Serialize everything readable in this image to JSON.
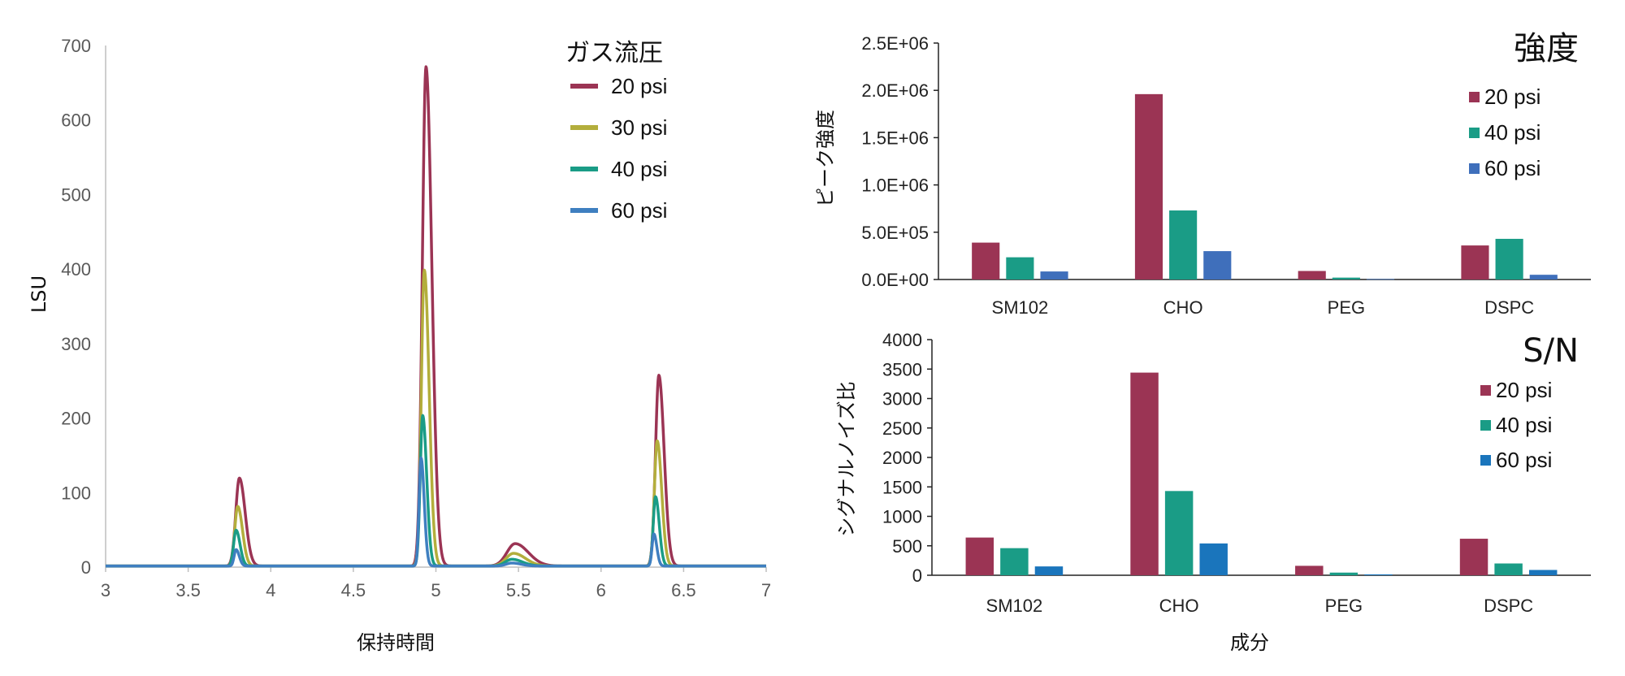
{
  "chart_data": [
    {
      "type": "line",
      "xlabel": "保持時間",
      "ylabel": "LSU",
      "xlim": [
        3,
        7
      ],
      "ylim": [
        0,
        700
      ],
      "x_ticks": [
        "3",
        "3.5",
        "4",
        "4.5",
        "5",
        "5.5",
        "6",
        "6.5",
        "7"
      ],
      "y_ticks": [
        "0",
        "100",
        "200",
        "300",
        "400",
        "500",
        "600",
        "700"
      ],
      "legend_title": "ガス流圧",
      "legend_position": "top-right",
      "grid": false,
      "series": [
        {
          "name": "20 psi",
          "color": "#9B3454",
          "peaks": [
            {
              "x": 3.81,
              "y": 118,
              "sigma": 0.022
            },
            {
              "x": 4.94,
              "y": 670,
              "sigma": 0.022
            },
            {
              "x": 5.48,
              "y": 30,
              "sigma": 0.05
            },
            {
              "x": 6.35,
              "y": 256,
              "sigma": 0.02
            }
          ]
        },
        {
          "name": "30 psi",
          "color": "#B3AE3C",
          "peaks": [
            {
              "x": 3.8,
              "y": 80,
              "sigma": 0.018
            },
            {
              "x": 4.93,
              "y": 397,
              "sigma": 0.018
            },
            {
              "x": 5.47,
              "y": 17,
              "sigma": 0.045
            },
            {
              "x": 6.34,
              "y": 168,
              "sigma": 0.017
            }
          ]
        },
        {
          "name": "40 psi",
          "color": "#1A9C86",
          "peaks": [
            {
              "x": 3.79,
              "y": 48,
              "sigma": 0.015
            },
            {
              "x": 4.92,
              "y": 202,
              "sigma": 0.015
            },
            {
              "x": 5.46,
              "y": 9,
              "sigma": 0.04
            },
            {
              "x": 6.33,
              "y": 93,
              "sigma": 0.014
            }
          ]
        },
        {
          "name": "60 psi",
          "color": "#3F7FC0",
          "peaks": [
            {
              "x": 3.79,
              "y": 22,
              "sigma": 0.012
            },
            {
              "x": 4.91,
              "y": 145,
              "sigma": 0.012
            },
            {
              "x": 5.46,
              "y": 4,
              "sigma": 0.035
            },
            {
              "x": 6.32,
              "y": 43,
              "sigma": 0.011
            }
          ]
        }
      ]
    },
    {
      "type": "bar",
      "title": "強度",
      "ylabel": "ピーク強度",
      "categories": [
        "SM102",
        "CHO",
        "PEG",
        "DSPC"
      ],
      "ylim": [
        0,
        2500000
      ],
      "y_ticks": [
        "0.0E+00",
        "5.0E+05",
        "1.0E+06",
        "1.5E+06",
        "2.0E+06",
        "2.5E+06"
      ],
      "legend_position": "right",
      "grid": false,
      "series": [
        {
          "name": "20 psi",
          "color": "#9B3454",
          "values": [
            390000,
            1960000,
            90000,
            360000
          ]
        },
        {
          "name": "40 psi",
          "color": "#1A9C86",
          "values": [
            235000,
            730000,
            20000,
            430000
          ]
        },
        {
          "name": "60 psi",
          "color": "#3F6FBB",
          "values": [
            85000,
            300000,
            5000,
            50000
          ]
        }
      ]
    },
    {
      "type": "bar",
      "title": "S/N",
      "xlabel": "成分",
      "ylabel": "シグナルノイズ比",
      "categories": [
        "SM102",
        "CHO",
        "PEG",
        "DSPC"
      ],
      "ylim": [
        0,
        4000
      ],
      "y_ticks": [
        "0",
        "500",
        "1000",
        "1500",
        "2000",
        "2500",
        "3000",
        "3500",
        "4000"
      ],
      "legend_position": "right",
      "grid": false,
      "series": [
        {
          "name": "20 psi",
          "color": "#9B3454",
          "values": [
            640,
            3440,
            160,
            620
          ]
        },
        {
          "name": "40 psi",
          "color": "#1A9C86",
          "values": [
            460,
            1430,
            45,
            200
          ]
        },
        {
          "name": "60 psi",
          "color": "#1A75BC",
          "values": [
            150,
            540,
            15,
            90
          ]
        }
      ]
    }
  ]
}
